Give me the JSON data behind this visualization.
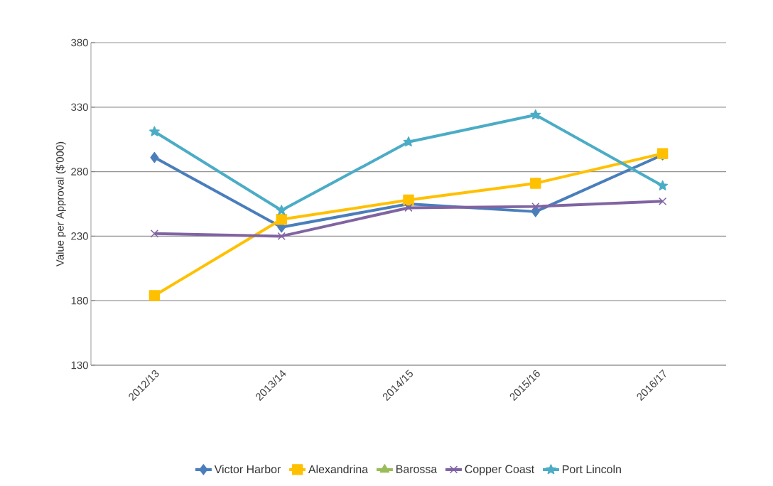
{
  "chart_data": {
    "type": "line",
    "ylabel": "Value per Approval ($'000)",
    "categories": [
      "2012/13",
      "2013/14",
      "2014/15",
      "2015/16",
      "2016/17"
    ],
    "series": [
      {
        "name": "Victor Harbor",
        "color": "#4a7ebb",
        "marker": "diamond",
        "values": [
          291,
          237,
          255,
          249,
          293
        ]
      },
      {
        "name": "Alexandrina",
        "color": "#ffc000",
        "marker": "square",
        "values": [
          184,
          243,
          258,
          271,
          294
        ]
      },
      {
        "name": "Barossa",
        "color": "#9bbb59",
        "marker": "triangle",
        "values": [
          null,
          null,
          null,
          null,
          null
        ]
      },
      {
        "name": "Copper Coast",
        "color": "#8064a2",
        "marker": "cross",
        "values": [
          232,
          230,
          252,
          253,
          257
        ]
      },
      {
        "name": "Port Lincoln",
        "color": "#4bacc6",
        "marker": "star",
        "values": [
          311,
          250,
          303,
          324,
          269
        ]
      }
    ],
    "ylim": [
      130,
      380
    ],
    "yticks": [
      130,
      180,
      230,
      280,
      330,
      380
    ],
    "grid": "y",
    "legend": "bottom",
    "line_style": "solid"
  }
}
